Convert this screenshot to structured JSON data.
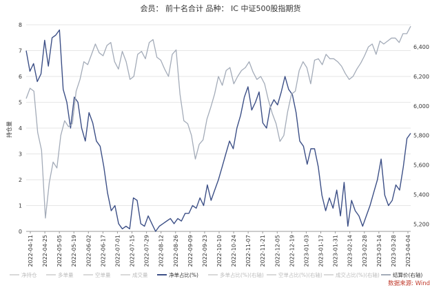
{
  "chart_data": {
    "type": "line",
    "title": "会员：  前十名合计  品种：  IC 中证500股指期货",
    "ylabel_left": "持仓量",
    "ylim_left": [
      0,
      8
    ],
    "yticks_left": [
      "0",
      "1",
      "2",
      "3",
      "4",
      "5",
      "6",
      "7",
      "8"
    ],
    "ylim_right": [
      5150,
      6550
    ],
    "yticks_right": [
      "5,200",
      "5,400",
      "5,600",
      "5,800",
      "6,000",
      "6,200",
      "6,400"
    ],
    "ytick_values_right": [
      5200,
      5400,
      5600,
      5800,
      6000,
      6200,
      6400
    ],
    "x_tick_labels": [
      "2022-04-11",
      "2022-04-25",
      "2022-05-05",
      "2022-05-19",
      "2022-06-02",
      "2022-06-17",
      "2022-07-01",
      "2022-07-15",
      "2022-07-29",
      "2022-08-12",
      "2022-08-26",
      "2022-09-09",
      "2022-09-23",
      "2022-10-10",
      "2022-10-24",
      "2022-11-07",
      "2022-11-21",
      "2022-12-05",
      "2022-12-19",
      "2023-01-03",
      "2023-01-17",
      "2023-01-31",
      "2023-02-14",
      "2023-02-28",
      "2023-03-14",
      "2023-03-28",
      "2023-04-04"
    ],
    "legend_placement": "bottom",
    "grid": true,
    "series": [
      {
        "name": "净单占比(%)",
        "axis": "left",
        "color": "#3c4f86",
        "x_index_range": [
          0,
          100
        ],
        "values": [
          7.0,
          6.2,
          6.5,
          5.8,
          6.1,
          7.4,
          6.4,
          7.5,
          7.6,
          7.8,
          5.5,
          5.0,
          4.0,
          5.2,
          5.0,
          4.0,
          3.5,
          4.6,
          4.2,
          3.5,
          3.3,
          2.5,
          1.5,
          0.8,
          1.0,
          0.3,
          0.1,
          0.2,
          0.1,
          1.3,
          1.2,
          0.3,
          0.2,
          0.6,
          0.3,
          0.0,
          0.2,
          0.3,
          0.4,
          0.5,
          0.3,
          0.5,
          0.4,
          0.7,
          0.7,
          1.0,
          0.9,
          1.3,
          1.0,
          1.8,
          1.2,
          1.6,
          2.0,
          2.5,
          3.0,
          3.5,
          3.2,
          4.0,
          4.5,
          5.2,
          5.6,
          4.7,
          5.0,
          5.4,
          4.2,
          4.0,
          4.8,
          5.1,
          4.9,
          5.4,
          6.0,
          5.5,
          5.3,
          4.6,
          3.5,
          3.3,
          2.6,
          3.2,
          3.2,
          2.5,
          1.4,
          0.8,
          1.3,
          0.9,
          1.6,
          0.6,
          1.9,
          0.2,
          1.2,
          0.8,
          0.6,
          0.2,
          0.6,
          1.0,
          1.5,
          2.0,
          2.8,
          1.4,
          1.0,
          1.2,
          1.8,
          1.6,
          2.5,
          3.6,
          3.8
        ]
      },
      {
        "name": "结算价(右轴)",
        "axis": "right",
        "color": "#a3abb8",
        "x_index_range": [
          0,
          100
        ],
        "values": [
          6050,
          6120,
          6100,
          5820,
          5700,
          5240,
          5480,
          5620,
          5580,
          5800,
          5900,
          5860,
          5880,
          6100,
          6180,
          6300,
          6280,
          6350,
          6420,
          6360,
          6340,
          6410,
          6430,
          6300,
          6250,
          6370,
          6300,
          6180,
          6200,
          6350,
          6370,
          6320,
          6430,
          6450,
          6330,
          6310,
          6250,
          6200,
          6350,
          6380,
          6080,
          5900,
          5880,
          5800,
          5640,
          5740,
          5770,
          5910,
          5990,
          6080,
          6200,
          6140,
          6240,
          6260,
          6150,
          6200,
          6240,
          6260,
          6300,
          6230,
          6180,
          6200,
          6150,
          6040,
          5950,
          5880,
          5760,
          5800,
          5960,
          6080,
          6100,
          6240,
          6300,
          6260,
          6150,
          6310,
          6320,
          6280,
          6350,
          6320,
          6320,
          6300,
          6270,
          6220,
          6180,
          6200,
          6250,
          6290,
          6340,
          6400,
          6420,
          6350,
          6440,
          6420,
          6440,
          6460,
          6460,
          6430,
          6490,
          6490,
          6540
        ]
      }
    ],
    "legend": [
      {
        "label": "净持仓",
        "color": "#d9d9d9",
        "active": false
      },
      {
        "label": "多单量",
        "color": "#d9d9d9",
        "active": false
      },
      {
        "label": "空单量",
        "color": "#d9d9d9",
        "active": false
      },
      {
        "label": "成交量",
        "color": "#d9d9d9",
        "active": false
      },
      {
        "label": "净单占比(%)",
        "color": "#3c4f86",
        "active": true
      },
      {
        "label": "多单占比(%)(右轴)",
        "color": "#d9d9d9",
        "active": false
      },
      {
        "label": "空单占比(%)(右轴)",
        "color": "#d9d9d9",
        "active": false
      },
      {
        "label": "成交占比(%)(右轴)",
        "color": "#d9d9d9",
        "active": false
      },
      {
        "label": "结算价(右轴)",
        "color": "#a3abb8",
        "active": true
      }
    ],
    "source": "数据来源: Wind"
  }
}
